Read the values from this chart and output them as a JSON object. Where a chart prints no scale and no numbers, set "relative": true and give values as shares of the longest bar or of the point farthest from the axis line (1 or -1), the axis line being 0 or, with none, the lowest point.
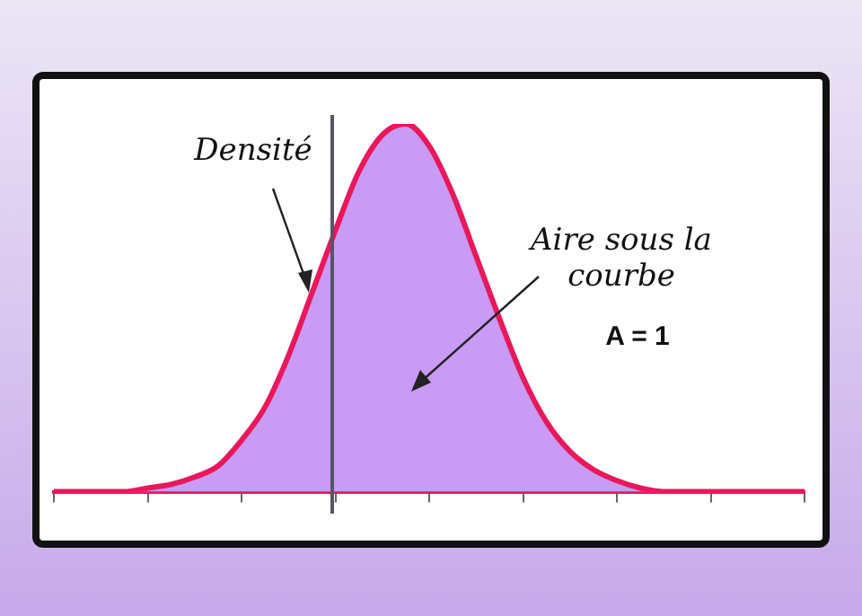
{
  "chart_data": {
    "type": "area",
    "relative": true,
    "legend": false,
    "grid": false,
    "marker": "none",
    "annotations": [
      "Densité",
      "Aire sous la courbe",
      "A = 1"
    ],
    "categories": [
      null,
      null,
      null,
      null,
      null,
      null,
      null,
      null,
      null,
      null,
      null,
      null,
      null,
      null,
      null,
      null,
      null,
      null,
      null,
      null,
      null,
      null,
      null,
      null,
      null,
      null,
      null,
      null,
      null,
      null,
      null,
      null,
      null
    ],
    "series": [
      {
        "color": "#e8185a",
        "values": [
          0,
          0,
          0,
          0,
          0.01,
          0.02,
          0.04,
          0.07,
          0.14,
          0.23,
          0.37,
          0.54,
          0.71,
          0.87,
          0.97,
          1,
          0.94,
          0.81,
          0.64,
          0.47,
          0.31,
          0.19,
          0.11,
          0.06,
          0.03,
          0.01,
          0,
          0,
          0,
          0,
          0,
          0,
          0
        ]
      }
    ]
  }
}
